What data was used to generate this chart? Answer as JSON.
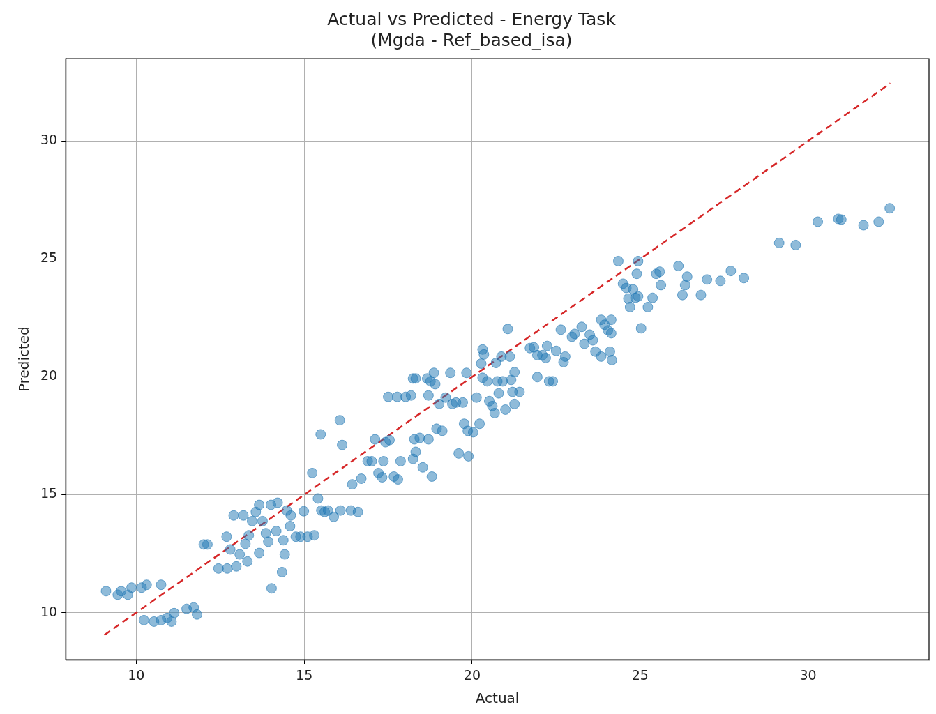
{
  "chart_data": {
    "type": "scatter",
    "title": "Actual vs Predicted - Energy Task\n(Mgda - Ref_based_isa)",
    "xlabel": "Actual",
    "ylabel": "Predicted",
    "xlim": [
      7.9,
      33.6
    ],
    "ylim": [
      8.0,
      33.5
    ],
    "xticks": [
      10,
      15,
      20,
      25,
      30
    ],
    "yticks": [
      10,
      15,
      20,
      25,
      30
    ],
    "grid": true,
    "legend": false,
    "series": [
      {
        "color": "#1f77b4",
        "marker": "circle",
        "x": [
          9.1,
          9.45,
          9.55,
          9.75,
          9.86,
          10.16,
          10.31,
          10.74,
          10.23,
          10.53,
          10.74,
          10.92,
          11.13,
          11.5,
          11.71,
          11.81,
          11.05,
          12.01,
          12.12,
          12.45,
          12.71,
          12.69,
          12.8,
          12.9,
          12.98,
          13.08,
          13.19,
          13.25,
          13.31,
          13.35,
          13.45,
          13.56,
          13.66,
          13.66,
          13.76,
          13.86,
          13.93,
          14.01,
          14.03,
          14.17,
          14.21,
          14.34,
          14.38,
          14.42,
          14.48,
          14.58,
          14.6,
          14.75,
          14.89,
          14.99,
          15.1,
          15.24,
          15.3,
          15.41,
          15.51,
          15.61,
          15.71,
          15.88,
          16.08,
          16.06,
          15.49,
          16.13,
          16.39,
          16.6,
          16.43,
          16.7,
          16.89,
          17.01,
          17.11,
          17.21,
          17.32,
          17.36,
          17.42,
          17.54,
          17.67,
          17.79,
          17.87,
          17.5,
          17.77,
          18.02,
          18.18,
          18.24,
          18.32,
          18.24,
          18.32,
          18.44,
          18.28,
          18.53,
          18.66,
          18.7,
          18.7,
          18.76,
          18.8,
          18.86,
          18.9,
          18.94,
          19.02,
          19.11,
          19.21,
          19.35,
          19.41,
          19.52,
          19.6,
          19.72,
          19.76,
          19.83,
          19.87,
          19.89,
          20.03,
          20.13,
          20.22,
          20.27,
          20.31,
          20.31,
          20.35,
          20.45,
          20.51,
          20.6,
          20.67,
          20.71,
          20.75,
          20.79,
          20.87,
          20.91,
          20.99,
          21.06,
          21.12,
          21.16,
          21.2,
          21.26,
          21.26,
          21.41,
          21.72,
          21.84,
          21.94,
          21.94,
          22.09,
          22.23,
          22.29,
          22.4,
          22.19,
          22.5,
          22.64,
          22.72,
          22.77,
          22.97,
          23.05,
          23.26,
          23.34,
          23.5,
          23.59,
          23.67,
          23.84,
          23.84,
          23.94,
          24.04,
          24.1,
          24.14,
          24.16,
          24.14,
          24.35,
          24.49,
          24.59,
          24.65,
          24.7,
          24.79,
          24.86,
          24.9,
          24.94,
          24.94,
          25.03,
          25.23,
          25.37,
          25.48,
          25.58,
          25.62,
          26.14,
          26.26,
          26.34,
          26.4,
          26.81,
          26.99,
          27.39,
          27.7,
          28.09,
          29.14,
          29.63,
          30.29,
          30.9,
          30.99,
          31.65,
          32.1,
          32.43
        ],
        "values": [
          10.91,
          10.76,
          10.91,
          10.76,
          11.06,
          11.06,
          11.18,
          11.18,
          9.68,
          9.62,
          9.68,
          9.77,
          9.98,
          10.16,
          10.22,
          9.92,
          9.62,
          12.89,
          12.89,
          11.87,
          11.87,
          13.22,
          12.68,
          14.12,
          11.96,
          12.47,
          14.12,
          12.92,
          12.17,
          13.28,
          13.88,
          14.27,
          14.57,
          12.53,
          13.88,
          13.37,
          13.01,
          14.57,
          11.03,
          13.46,
          14.66,
          11.72,
          13.07,
          12.47,
          14.33,
          13.67,
          14.12,
          13.22,
          13.22,
          14.3,
          13.22,
          15.92,
          13.28,
          14.84,
          14.33,
          14.27,
          14.33,
          14.06,
          14.33,
          18.16,
          17.56,
          17.11,
          14.33,
          14.27,
          15.44,
          15.68,
          16.42,
          16.42,
          17.35,
          15.92,
          15.74,
          16.42,
          17.23,
          17.32,
          15.77,
          15.65,
          16.42,
          19.15,
          19.15,
          19.15,
          19.21,
          19.93,
          19.93,
          16.52,
          16.82,
          17.41,
          17.35,
          16.16,
          19.93,
          19.21,
          17.35,
          19.81,
          15.77,
          20.17,
          19.69,
          17.8,
          18.85,
          17.71,
          19.12,
          20.17,
          18.85,
          18.91,
          16.75,
          18.91,
          18.01,
          20.17,
          17.71,
          16.63,
          17.65,
          19.12,
          18.01,
          20.56,
          21.16,
          19.96,
          20.95,
          19.81,
          18.97,
          18.76,
          18.46,
          20.59,
          19.81,
          19.3,
          20.86,
          19.81,
          18.61,
          22.03,
          20.86,
          19.87,
          19.36,
          20.2,
          18.85,
          19.36,
          21.22,
          21.25,
          20.92,
          19.99,
          20.92,
          21.31,
          19.81,
          19.81,
          20.8,
          21.1,
          22.0,
          20.62,
          20.86,
          21.7,
          21.82,
          22.12,
          21.4,
          21.79,
          21.55,
          21.07,
          22.42,
          20.86,
          22.21,
          21.97,
          21.07,
          22.42,
          20.71,
          21.85,
          24.91,
          23.95,
          23.77,
          23.32,
          22.96,
          23.71,
          23.35,
          24.37,
          24.91,
          23.41,
          22.06,
          22.96,
          23.35,
          24.37,
          24.46,
          23.89,
          24.7,
          23.47,
          23.89,
          24.25,
          23.47,
          24.13,
          24.07,
          24.49,
          24.19,
          25.68,
          25.59,
          26.58,
          26.7,
          26.67,
          26.43,
          26.58,
          27.15
        ]
      },
      {
        "type": "line",
        "color": "#d62728",
        "marker": "none",
        "line_style": "dashed",
        "x": [
          9.05,
          32.45
        ],
        "values": [
          9.05,
          32.45
        ]
      }
    ]
  }
}
